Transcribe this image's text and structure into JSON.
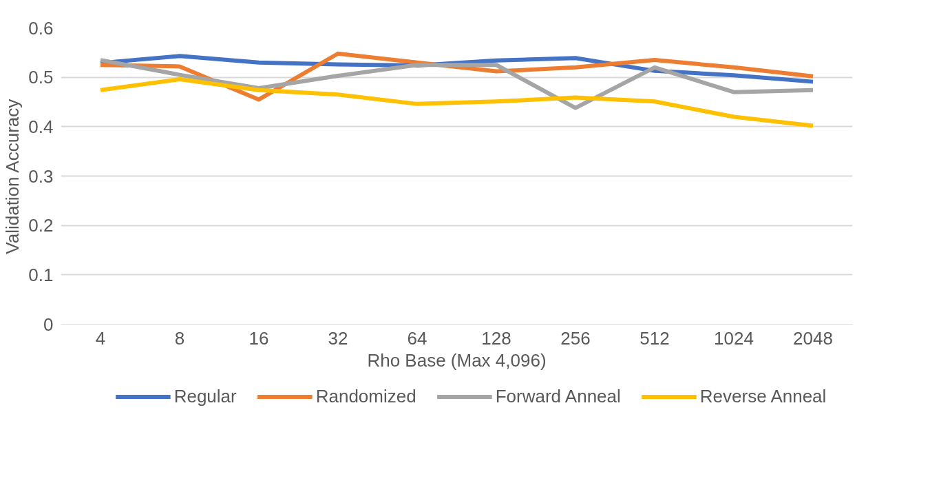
{
  "chart_data": {
    "type": "line",
    "xlabel": "Rho Base (Max 4,096)",
    "ylabel": "Validation Accuracy",
    "categories": [
      "4",
      "8",
      "16",
      "32",
      "64",
      "128",
      "256",
      "512",
      "1024",
      "2048"
    ],
    "series": [
      {
        "name": "Regular",
        "color": "#4472c4",
        "values": [
          0.529,
          0.543,
          0.53,
          0.526,
          0.524,
          0.534,
          0.539,
          0.513,
          0.504,
          0.491
        ]
      },
      {
        "name": "Randomized",
        "color": "#ed7d31",
        "values": [
          0.525,
          0.522,
          0.455,
          0.548,
          0.53,
          0.512,
          0.52,
          0.535,
          0.52,
          0.502
        ]
      },
      {
        "name": "Forward Anneal",
        "color": "#a5a5a5",
        "values": [
          0.535,
          0.505,
          0.478,
          0.503,
          0.525,
          0.525,
          0.438,
          0.52,
          0.47,
          0.474
        ]
      },
      {
        "name": "Reverse Anneal",
        "color": "#ffc000",
        "values": [
          0.474,
          0.496,
          0.474,
          0.465,
          0.446,
          0.451,
          0.459,
          0.451,
          0.42,
          0.402
        ]
      }
    ],
    "ylim": [
      0,
      0.6
    ],
    "yticks": [
      0,
      0.1,
      0.2,
      0.3,
      0.4,
      0.5,
      0.6
    ],
    "grid": "y",
    "legend": "bottom",
    "marker": "none",
    "line_style": "solid"
  }
}
